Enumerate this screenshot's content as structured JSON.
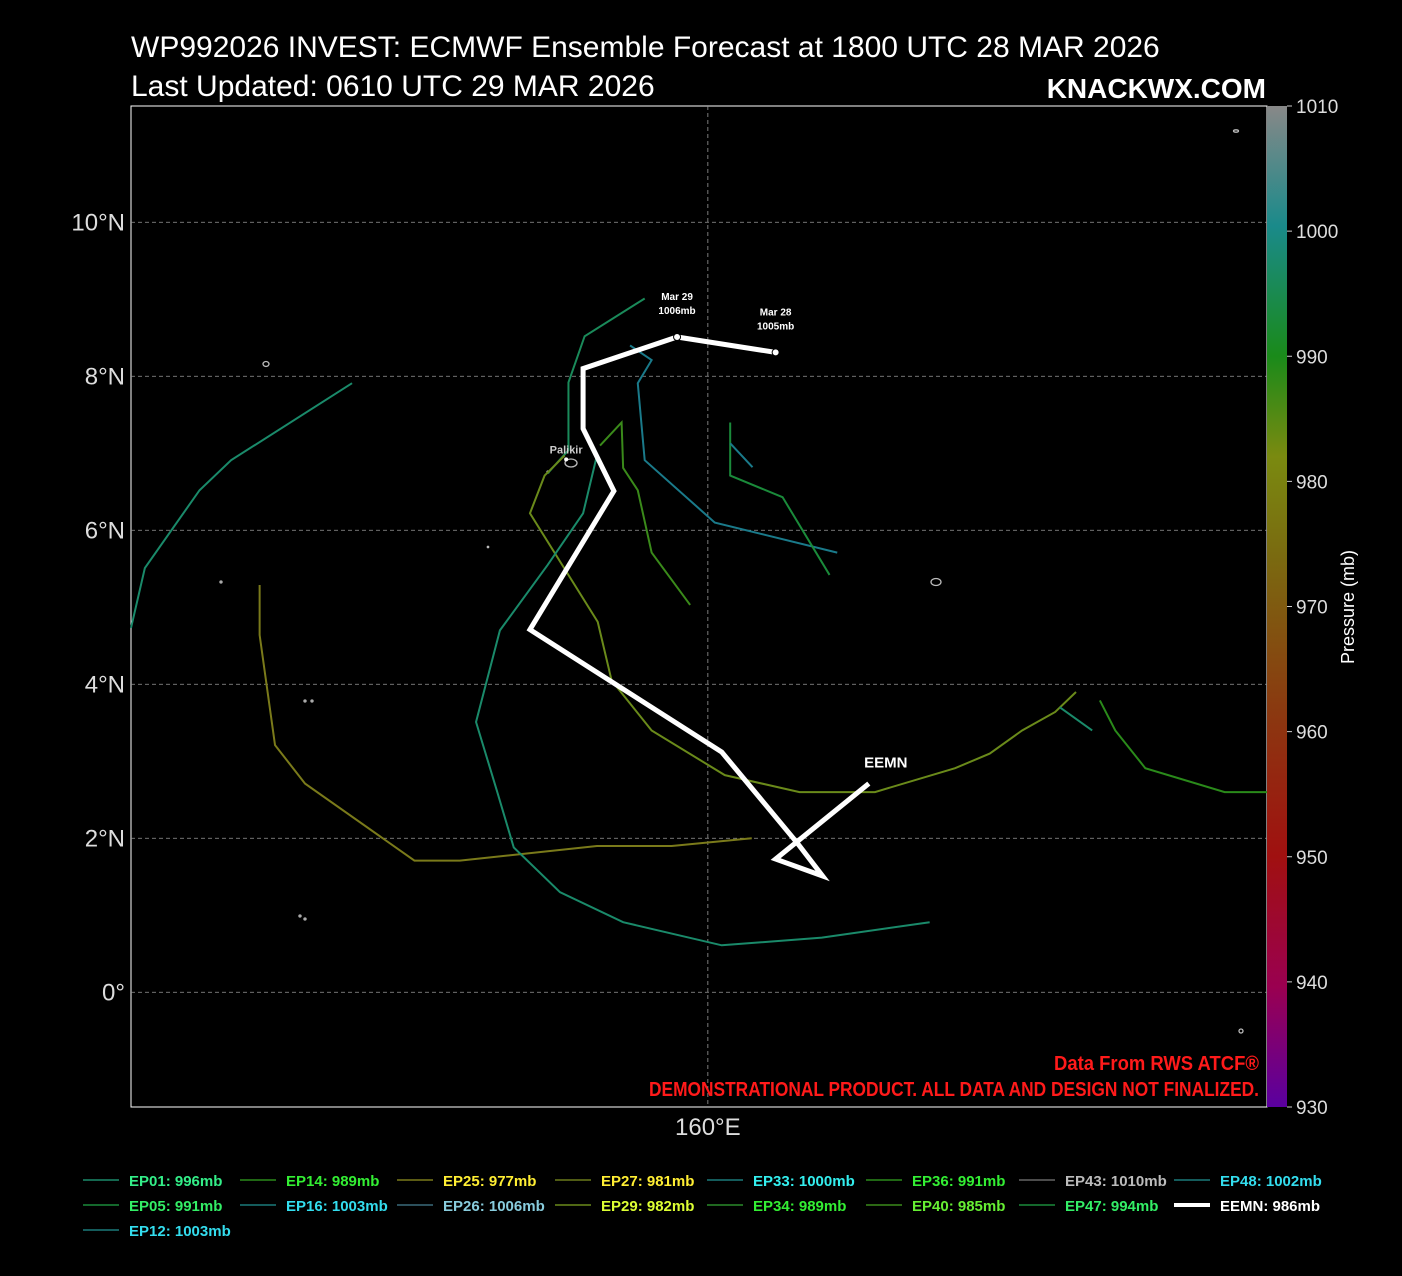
{
  "map": {
    "title": "WP992026 INVEST: ECMWF Ensemble Forecast at 1800 UTC 28 MAR 2026",
    "subtitle": "Last Updated: 0610 UTC 29 MAR 2026",
    "brand": "KNACKWX.COM",
    "xlim": [
      152.51,
      167.26
    ],
    "ylim": [
      -1.49,
      11.51
    ],
    "lat_ticks": [
      {
        "value": 0,
        "label": "0°"
      },
      {
        "value": 2,
        "label": "2°N"
      },
      {
        "value": 4,
        "label": "4°N"
      },
      {
        "value": 6,
        "label": "6°N"
      },
      {
        "value": 8,
        "label": "8°N"
      },
      {
        "value": 10,
        "label": "10°N"
      }
    ],
    "lon_ticks": [
      {
        "value": 160,
        "label": "160°E"
      }
    ],
    "colorbar": {
      "label": "Pressure (mb)",
      "lim": [
        930,
        1010
      ],
      "ticks": [
        930,
        940,
        950,
        960,
        970,
        980,
        990,
        1000,
        1010
      ]
    },
    "credits": [
      "Data From RWS ATCF®",
      "DEMONSTRATIONAL PRODUCT. ALL DATA AND DESIGN NOT FINALIZED."
    ],
    "place": {
      "label": "Palikir",
      "lon": 158.16,
      "lat": 6.92
    },
    "point_labels": [
      {
        "date": "Mar 29",
        "pressure": "1006mb",
        "lon": 159.6,
        "lat": 8.51
      },
      {
        "date": "Mar 28",
        "pressure": "1005mb",
        "lon": 160.88,
        "lat": 8.31
      }
    ],
    "mean_label": {
      "text": "EEMN",
      "lon": 162.09,
      "lat": 2.71
    },
    "tracks": [
      {
        "color": "#1a8a6a",
        "width": 2,
        "lon": [
          152.51,
          152.69,
          153.4,
          153.81,
          155.38
        ],
        "lat": [
          4.73,
          5.51,
          6.52,
          6.91,
          7.91
        ]
      },
      {
        "color": "#7a7a1a",
        "width": 2,
        "lon": [
          154.18,
          154.18,
          154.38,
          154.77,
          156.19,
          156.78,
          158.56,
          159.53,
          160.57
        ],
        "lat": [
          5.29,
          4.64,
          3.21,
          2.71,
          1.71,
          1.71,
          1.9,
          1.9,
          2.0
        ]
      },
      {
        "color": "#1a8a5a",
        "width": 2,
        "lon": [
          159.18,
          158.4,
          158.19,
          158.19,
          157.92
        ],
        "lat": [
          9.01,
          8.52,
          7.92,
          7.04,
          6.74
        ]
      },
      {
        "color": "#6a8a1a",
        "width": 2,
        "lon": [
          158.14,
          157.88,
          157.69,
          158.57,
          158.75,
          159.27,
          160.22,
          161.19,
          162.17,
          163.21,
          163.66,
          164.08,
          164.51,
          164.78
        ],
        "lat": [
          6.97,
          6.71,
          6.22,
          4.81,
          4.05,
          3.4,
          2.82,
          2.6,
          2.6,
          2.91,
          3.1,
          3.4,
          3.64,
          3.9
        ]
      },
      {
        "color": "#1a7a8a",
        "width": 2,
        "lon": [
          158.99,
          159.27,
          159.09,
          159.18,
          160.09,
          161.68
        ],
        "lat": [
          8.4,
          8.21,
          7.91,
          6.91,
          6.1,
          5.71
        ]
      },
      {
        "color": "#1a8a6a",
        "width": 2,
        "lon": [
          158.55,
          158.38,
          157.92,
          157.3,
          156.99,
          157.26,
          157.48,
          158.08,
          158.9,
          160.18,
          161.48,
          162.88
        ],
        "lat": [
          6.93,
          6.22,
          5.55,
          4.7,
          3.51,
          2.62,
          1.88,
          1.3,
          0.91,
          0.61,
          0.71,
          0.91
        ]
      },
      {
        "color": "#3a8a1a",
        "width": 2,
        "lon": [
          158.6,
          158.88,
          158.9,
          159.09,
          159.27,
          159.77
        ],
        "lat": [
          7.1,
          7.4,
          6.81,
          6.52,
          5.71,
          5.03
        ]
      },
      {
        "color": "#1a8a3a",
        "width": 2,
        "lon": [
          160.29,
          160.29,
          160.97,
          161.58
        ],
        "lat": [
          7.4,
          6.71,
          6.43,
          5.42
        ]
      },
      {
        "color": "#1a7a8a",
        "width": 2,
        "lon": [
          160.29,
          160.58
        ],
        "lat": [
          7.13,
          6.82
        ]
      },
      {
        "color": "#2a8a1a",
        "width": 2,
        "lon": [
          165.09,
          165.29,
          165.68,
          166.71,
          167.26
        ],
        "lat": [
          3.79,
          3.4,
          2.91,
          2.6,
          2.6
        ]
      },
      {
        "color": "#1a8a6a",
        "width": 2,
        "lon": [
          164.57,
          164.99
        ],
        "lat": [
          3.7,
          3.4
        ]
      },
      {
        "color": "#ffffff",
        "width": 5,
        "lon": [
          160.88,
          159.6,
          158.38,
          158.38,
          158.78,
          157.69,
          160.18,
          161.16,
          161.49,
          160.88,
          162.09
        ],
        "lat": [
          8.31,
          8.51,
          8.1,
          7.32,
          6.51,
          4.71,
          3.12,
          1.94,
          1.51,
          1.73,
          2.71
        ]
      }
    ],
    "legend": [
      {
        "label": "EP01: 996mb",
        "text_color": "#33ee88",
        "line_color": "#1a8a6a"
      },
      {
        "label": "EP14: 989mb",
        "text_color": "#33ee33",
        "line_color": "#2a8a1a"
      },
      {
        "label": "EP25: 977mb",
        "text_color": "#ffee33",
        "line_color": "#7a7a1a"
      },
      {
        "label": "EP27: 981mb",
        "text_color": "#ffee33",
        "line_color": "#6a7a1a"
      },
      {
        "label": "EP33: 1000mb",
        "text_color": "#33eeee",
        "line_color": "#1a7a7a"
      },
      {
        "label": "EP36: 991mb",
        "text_color": "#33ee33",
        "line_color": "#2a8a1a"
      },
      {
        "label": "EP43: 1010mb",
        "text_color": "#bbbbbb",
        "line_color": "#666666"
      },
      {
        "label": "EP48: 1002mb",
        "text_color": "#33ddee",
        "line_color": "#1a7a7a"
      },
      {
        "label": "EP05: 991mb",
        "text_color": "#33ee66",
        "line_color": "#1a8a3a"
      },
      {
        "label": "EP16: 1003mb",
        "text_color": "#33ddee",
        "line_color": "#1a7a7a"
      },
      {
        "label": "EP26: 1006mb",
        "text_color": "#88ccdd",
        "line_color": "#3a6a7a"
      },
      {
        "label": "EP29: 982mb",
        "text_color": "#ddff33",
        "line_color": "#6a8a1a"
      },
      {
        "label": "EP34: 989mb",
        "text_color": "#33ee33",
        "line_color": "#2a8a2a"
      },
      {
        "label": "EP40: 985mb",
        "text_color": "#66ee33",
        "line_color": "#3a8a1a"
      },
      {
        "label": "EP47: 994mb",
        "text_color": "#33ee66",
        "line_color": "#1a8a3a"
      },
      {
        "label": "EEMN: 986mb",
        "text_color": "#ffffff",
        "line_color": "#ffffff"
      },
      {
        "label": "EP12: 1003mb",
        "text_color": "#33ddee",
        "line_color": "#1a7a7a"
      }
    ]
  }
}
